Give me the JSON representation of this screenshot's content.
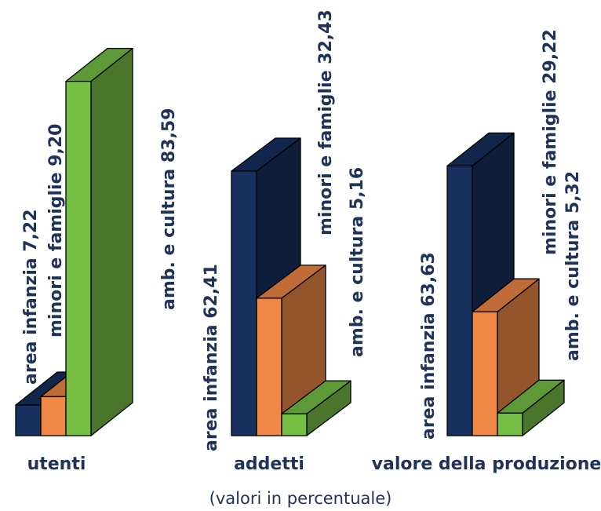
{
  "note": "(valori in percentuale)",
  "colors": {
    "area_infanzia": "#17305e",
    "minori_famiglie": "#ef8747",
    "amb_cultura": "#76bf45",
    "text": "#1f3258"
  },
  "chart_data": {
    "type": "bar",
    "categories": [
      "utenti",
      "addetti",
      "valore della produzione"
    ],
    "series": [
      {
        "name": "area infanzia",
        "values": [
          7.22,
          62.41,
          63.63
        ],
        "labels": [
          "7,22",
          "62,41",
          "63,63"
        ]
      },
      {
        "name": "minori e famiglie",
        "values": [
          9.2,
          32.43,
          29.22
        ],
        "labels": [
          "9,20",
          "32,43",
          "29,22"
        ]
      },
      {
        "name": "amb. e cultura",
        "values": [
          83.59,
          5.16,
          5.32
        ],
        "labels": [
          "83,59",
          "5,16",
          "5,32"
        ]
      }
    ],
    "ylim": [
      0,
      100
    ],
    "grid": false,
    "legend": "none"
  }
}
